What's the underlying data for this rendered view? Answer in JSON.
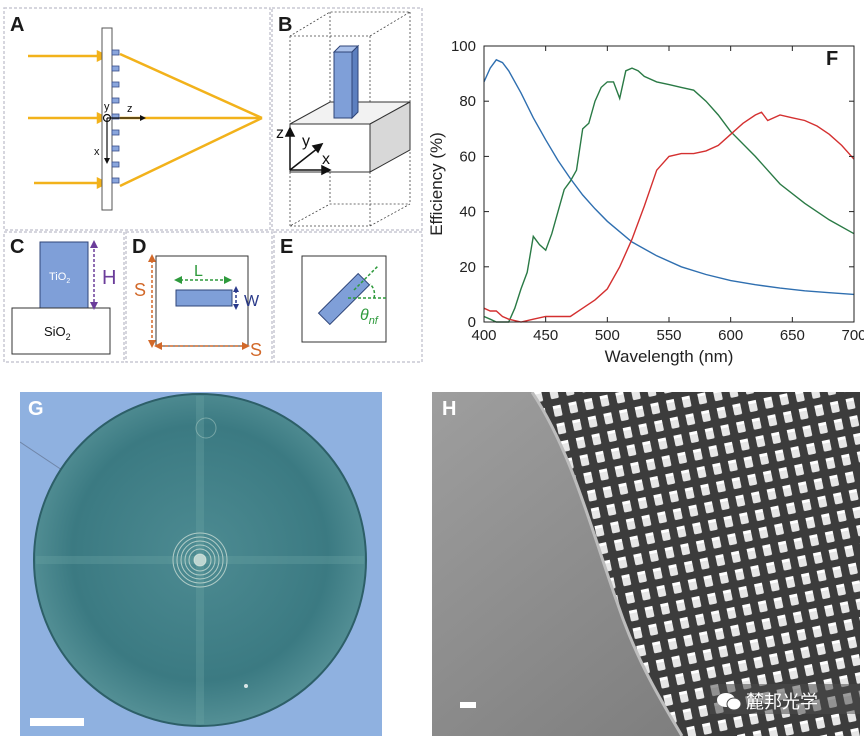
{
  "panels": {
    "A": {
      "label": "A",
      "axis_y": "y",
      "axis_z": "z",
      "axis_x": "x"
    },
    "B": {
      "label": "B",
      "axis_z": "z",
      "axis_y": "y",
      "axis_x": "x"
    },
    "C": {
      "label": "C",
      "tio2": "TiO",
      "tio2_sub": "2",
      "sio2": "SiO",
      "sio2_sub": "2",
      "dim": "H"
    },
    "D": {
      "label": "D",
      "length": "L",
      "width": "W",
      "period_v": "S",
      "period_h": "S"
    },
    "E": {
      "label": "E",
      "angle": "θ",
      "angle_sub": "nf"
    },
    "F": {
      "label": "F"
    },
    "G": {
      "label": "G"
    },
    "H": {
      "label": "H"
    }
  },
  "watermark": {
    "text": "麓邦光学"
  },
  "colors": {
    "yellow": "#f2b21b",
    "blue_block": "#7f9fd8",
    "purple": "#6b3d9a",
    "green": "#2e9a3c",
    "orange": "#d2692a",
    "navy": "#2a3a8a"
  },
  "chart_data": {
    "type": "line",
    "title": "",
    "xlabel": "Wavelength (nm)",
    "ylabel": "Efficiency (%)",
    "xlim": [
      400,
      700
    ],
    "ylim": [
      0,
      100
    ],
    "xticks": [
      400,
      450,
      500,
      550,
      600,
      650,
      700
    ],
    "yticks": [
      0,
      20,
      40,
      60,
      80,
      100
    ],
    "grid": false,
    "series": [
      {
        "color": "#2f6fb0",
        "x": [
          400,
          405,
          410,
          415,
          420,
          430,
          440,
          450,
          460,
          470,
          480,
          490,
          500,
          520,
          540,
          560,
          580,
          600,
          620,
          640,
          660,
          680,
          700
        ],
        "y": [
          87,
          92,
          95,
          94,
          91,
          83,
          74,
          66,
          58.5,
          52,
          46,
          41,
          36.5,
          29,
          24,
          20,
          17.2,
          15,
          13.5,
          12.3,
          11.3,
          10.6,
          10
        ]
      },
      {
        "color": "#2a7a45",
        "x": [
          400,
          405,
          410,
          415,
          420,
          425,
          430,
          435,
          440,
          445,
          450,
          455,
          460,
          465,
          470,
          475,
          480,
          485,
          490,
          495,
          500,
          505,
          510,
          515,
          520,
          525,
          530,
          540,
          550,
          560,
          570,
          580,
          590,
          600,
          620,
          640,
          660,
          680,
          700
        ],
        "y": [
          2,
          1,
          0,
          0,
          0,
          5,
          12,
          18,
          31,
          28,
          26,
          32,
          40,
          48,
          51,
          55,
          70,
          72,
          80,
          85,
          87,
          87,
          81,
          91,
          92,
          91,
          89,
          87,
          86,
          85,
          84,
          80,
          75,
          69,
          60,
          50,
          43,
          37,
          32
        ]
      },
      {
        "color": "#d43030",
        "x": [
          400,
          405,
          410,
          415,
          420,
          430,
          440,
          450,
          460,
          470,
          480,
          490,
          500,
          510,
          520,
          530,
          540,
          550,
          560,
          570,
          580,
          590,
          600,
          610,
          620,
          625,
          630,
          640,
          650,
          660,
          670,
          680,
          690,
          700
        ],
        "y": [
          5,
          4,
          4,
          2,
          1,
          0,
          1,
          2,
          2,
          2,
          5,
          8,
          12,
          20,
          30,
          42,
          55,
          60,
          61,
          61,
          62,
          64,
          68,
          72,
          75,
          76,
          73,
          75,
          74,
          73,
          71,
          68,
          64,
          59
        ]
      }
    ]
  }
}
